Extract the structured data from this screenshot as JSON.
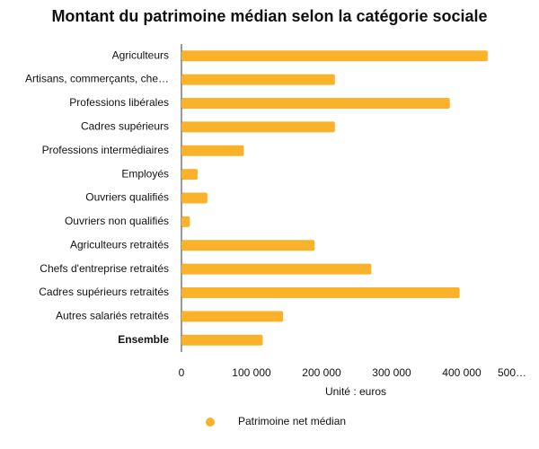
{
  "chart_data": {
    "type": "barh",
    "title": "Montant du patrimoine médian selon la catégorie sociale",
    "categories": [
      "Agriculteurs",
      "Artisans, commerçants, che…",
      "Professions libérales",
      "Cadres supérieurs",
      "Professions intermédiaires",
      "Employés",
      "Ouvriers qualifiés",
      "Ouvriers non qualifiés",
      "Agriculteurs retraités",
      "Chefs d'entreprise retraités",
      "Cadres supérieurs retraités",
      "Autres salariés retraités",
      "Ensemble"
    ],
    "series": [
      {
        "name": "Patrimoine net médian",
        "color": "#fbb22b",
        "values": [
          437000,
          219000,
          383000,
          219000,
          89000,
          23000,
          37000,
          12000,
          190000,
          271000,
          397000,
          145000,
          116000
        ]
      }
    ],
    "xlabel": "Unité : euros",
    "xlim": [
      0,
      500000
    ],
    "xticks": [
      0,
      {
        "value": 100000,
        "label": "100 000"
      },
      {
        "value": 200000,
        "label": "200 000"
      },
      {
        "value": 300000,
        "label": "300 000"
      },
      {
        "value": 400000,
        "label": "400 000"
      },
      {
        "value": 500000,
        "label": "500…"
      }
    ],
    "grid": false,
    "legend": "bottom"
  }
}
